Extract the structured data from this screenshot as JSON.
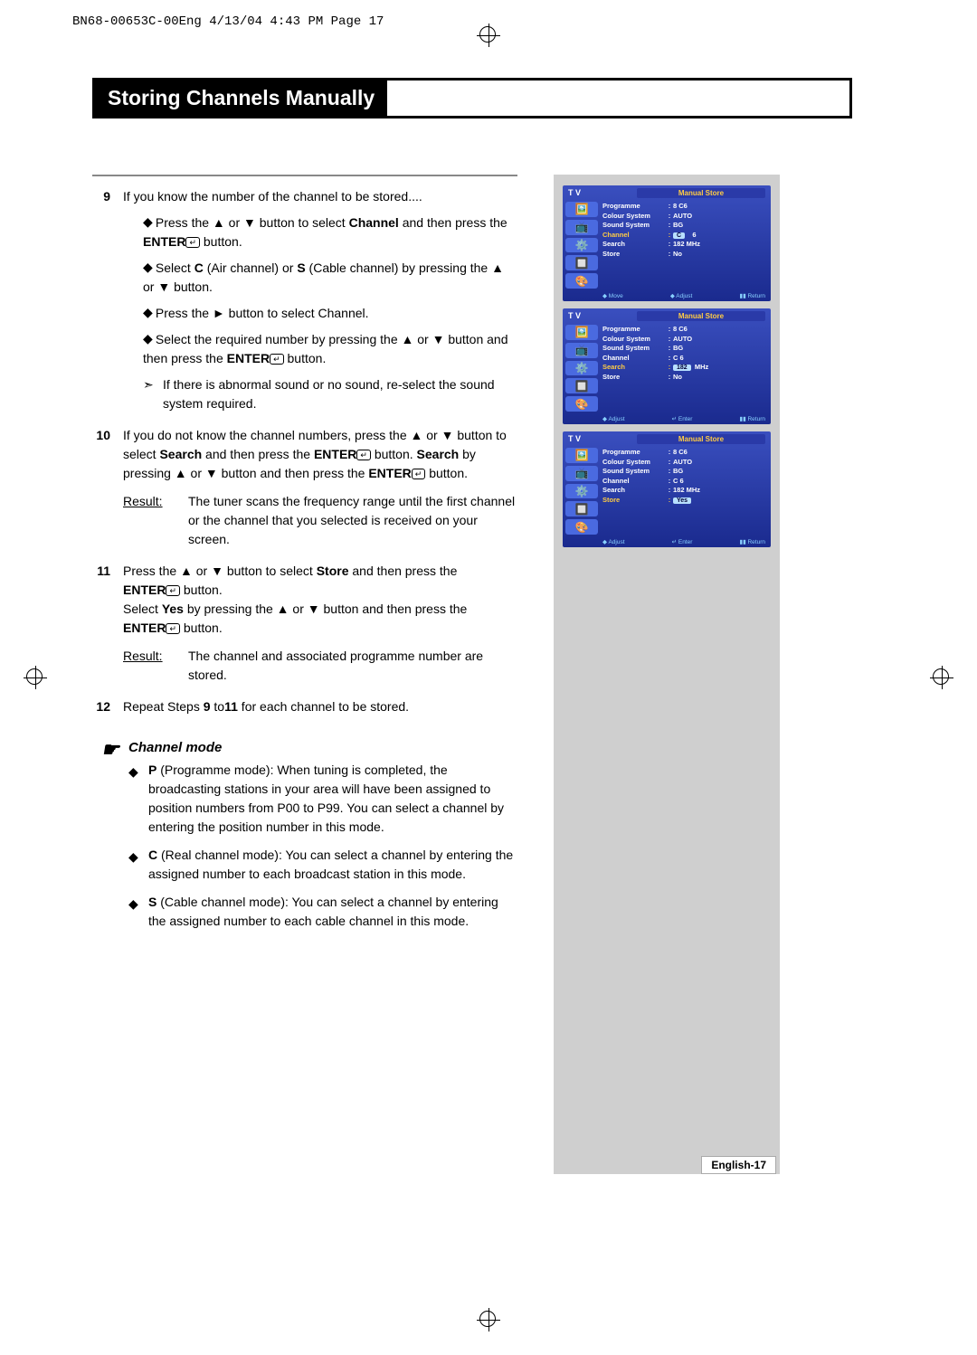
{
  "print_header": "BN68-00653C-00Eng  4/13/04 4:43 PM  Page 17",
  "page_title": "Storing Channels Manually",
  "steps": [
    {
      "num": "9",
      "lead": "If you know the number of the channel to be stored....",
      "bullets": [
        "Press the ▲ or ▼ button to select <b>Channel</b> and then press the <b>ENTER</b><span class='enter-icon'>↵</span>  button.",
        "Select <b>C</b> (Air channel) or <b>S</b> (Cable channel) by pressing the ▲ or ▼ button.",
        "Press the ► button to select Channel.",
        "Select the required number by pressing the ▲ or ▼ button and then press the <b>ENTER</b><span class='enter-icon'>↵</span>  button."
      ],
      "note": "If there is abnormal sound or no sound, re-select the sound system required."
    },
    {
      "num": "10",
      "lead": "If you do not know the channel numbers, press the ▲ or ▼ button to select <b>Search</b> and then press the <b>ENTER</b><span class='enter-icon'>↵</span>  button. <b>Search</b> by pressing ▲ or ▼ button and then press the <b>ENTER</b><span class='enter-icon'>↵</span> button.",
      "result": "The tuner scans the frequency range until the first channel or the channel that you selected is received on your screen."
    },
    {
      "num": "11",
      "lead": "Press the ▲ or ▼ button to select <b>Store</b> and then press the <b>ENTER</b><span class='enter-icon'>↵</span>  button.<br>Select <b>Yes</b> by pressing the ▲ or ▼ button and then press the <b>ENTER</b><span class='enter-icon'>↵</span>  button.",
      "result": "The channel and associated programme number are stored."
    },
    {
      "num": "12",
      "lead": "Repeat Steps <b>9</b> to<b>11</b> for each channel to be stored."
    }
  ],
  "channel_mode": {
    "title": "Channel mode",
    "items": [
      "<b>P</b> (Programme mode): When tuning is completed, the broadcasting stations in your area will have been assigned to position numbers from P00 to P99. You can select a channel by entering the position number in this mode.",
      "<b>C</b> (Real channel mode): You can select a channel by entering the assigned number to each broadcast station in this mode.",
      "<b>S</b> (Cable channel mode): You can select a channel by entering the assigned number to each cable channel in this mode."
    ]
  },
  "osd": {
    "tv_label": "T V",
    "title": "Manual Store",
    "rows": [
      {
        "lbl": "Programme",
        "val": "8      C6"
      },
      {
        "lbl": "Colour System",
        "val": "AUTO"
      },
      {
        "lbl": "Sound System",
        "val": "BG"
      },
      {
        "lbl": "Channel",
        "val": "C     6"
      },
      {
        "lbl": "Search",
        "val": "182   MHz"
      },
      {
        "lbl": "Store",
        "val": "No"
      }
    ],
    "footer": {
      "move": "Move",
      "adjust": "Adjust",
      "enter": "Enter",
      "return": "Return"
    },
    "highlights": [
      "Channel",
      "Search",
      "Store"
    ],
    "pills": {
      "Channel": "C",
      "Search": "182",
      "Store": "Yes"
    },
    "icons": [
      "🖼️",
      "📺",
      "⚙️",
      "🔲",
      "🎨"
    ]
  },
  "page_number": "English-17",
  "colors": {
    "osd_bg_top": "#3a4fbf",
    "osd_bg_bot": "#1a2a8e",
    "osd_hl": "#ffcc44",
    "sidebar_gray": "#cfcfcf"
  }
}
